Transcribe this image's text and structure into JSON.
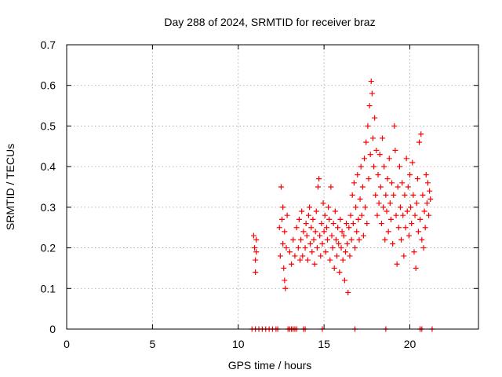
{
  "chart_data": {
    "type": "scatter",
    "title": "Day 288 of 2024, SRMTID for receiver braz",
    "xlabel": "GPS time / hours",
    "ylabel": "SRMTID / TECUs",
    "xlim": [
      0,
      24
    ],
    "ylim": [
      0,
      0.7
    ],
    "xticks": [
      0,
      5,
      10,
      15,
      20
    ],
    "yticks": [
      0,
      0.1,
      0.2,
      0.3,
      0.4,
      0.5,
      0.6,
      0.7
    ],
    "xtick_labels": [
      "0",
      "5",
      "10",
      "15",
      "20"
    ],
    "ytick_labels": [
      "0",
      "0.1",
      "0.2",
      "0.3",
      "0.4",
      "0.5",
      "0.6",
      "0.7"
    ],
    "grid": true,
    "marker": "+",
    "series": [
      {
        "name": "SRMTID",
        "color": "#ff0000",
        "x": [
          10.9,
          10.95,
          11.0,
          11.0,
          11.05,
          11.05,
          12.4,
          12.45,
          12.5,
          12.55,
          12.6,
          12.6,
          12.65,
          12.7,
          12.7,
          12.75,
          12.8,
          12.85,
          13.0,
          13.1,
          13.2,
          13.3,
          13.4,
          13.5,
          13.55,
          13.6,
          13.65,
          13.7,
          13.75,
          13.8,
          13.9,
          13.95,
          14.0,
          14.05,
          14.1,
          14.15,
          14.2,
          14.25,
          14.3,
          14.35,
          14.4,
          14.45,
          14.5,
          14.55,
          14.6,
          14.65,
          14.7,
          14.75,
          14.8,
          14.85,
          14.9,
          14.95,
          15.0,
          15.05,
          15.1,
          15.15,
          15.2,
          15.25,
          15.3,
          15.35,
          15.4,
          15.45,
          15.5,
          15.55,
          15.6,
          15.65,
          15.7,
          15.75,
          15.8,
          15.85,
          15.9,
          15.95,
          16.0,
          16.05,
          16.1,
          16.15,
          16.2,
          16.25,
          16.3,
          16.35,
          16.4,
          16.45,
          16.5,
          16.55,
          16.6,
          16.65,
          16.7,
          16.75,
          16.8,
          16.85,
          16.9,
          16.95,
          17.0,
          17.05,
          17.1,
          17.15,
          17.2,
          17.25,
          17.3,
          17.35,
          17.4,
          17.45,
          17.5,
          17.55,
          17.6,
          17.65,
          17.7,
          17.75,
          17.8,
          17.85,
          17.9,
          17.95,
          18.0,
          18.05,
          18.1,
          18.15,
          18.2,
          18.25,
          18.3,
          18.35,
          18.4,
          18.45,
          18.5,
          18.55,
          18.6,
          18.65,
          18.7,
          18.75,
          18.8,
          18.85,
          18.9,
          18.95,
          19.0,
          19.05,
          19.1,
          19.15,
          19.2,
          19.25,
          19.3,
          19.35,
          19.4,
          19.45,
          19.5,
          19.55,
          19.6,
          19.65,
          19.7,
          19.75,
          19.8,
          19.85,
          19.9,
          19.95,
          20.0,
          20.05,
          20.1,
          20.15,
          20.2,
          20.25,
          20.3,
          20.35,
          20.4,
          20.45,
          20.5,
          20.55,
          20.6,
          20.65,
          20.7,
          20.75,
          20.8,
          20.85,
          20.9,
          20.95,
          21.0,
          21.05,
          21.1,
          21.15,
          21.2,
          10.8,
          11.0,
          11.2,
          11.4,
          11.6,
          11.8,
          12.0,
          12.2,
          12.3,
          12.9,
          13.0,
          13.1,
          13.2,
          13.3,
          13.4,
          13.8,
          13.9,
          14.9,
          16.8,
          18.6,
          20.6,
          20.7,
          21.3
        ],
        "y": [
          0.23,
          0.2,
          0.17,
          0.14,
          0.19,
          0.22,
          0.25,
          0.18,
          0.35,
          0.27,
          0.21,
          0.3,
          0.15,
          0.12,
          0.24,
          0.1,
          0.2,
          0.28,
          0.19,
          0.16,
          0.22,
          0.18,
          0.25,
          0.2,
          0.27,
          0.17,
          0.22,
          0.29,
          0.18,
          0.24,
          0.2,
          0.26,
          0.23,
          0.17,
          0.28,
          0.3,
          0.21,
          0.25,
          0.19,
          0.27,
          0.22,
          0.16,
          0.24,
          0.29,
          0.2,
          0.35,
          0.37,
          0.23,
          0.18,
          0.26,
          0.21,
          0.31,
          0.24,
          0.28,
          0.19,
          0.25,
          0.22,
          0.3,
          0.27,
          0.17,
          0.35,
          0.23,
          0.2,
          0.26,
          0.15,
          0.29,
          0.22,
          0.18,
          0.25,
          0.21,
          0.14,
          0.27,
          0.2,
          0.24,
          0.17,
          0.23,
          0.12,
          0.19,
          0.26,
          0.21,
          0.09,
          0.25,
          0.18,
          0.28,
          0.22,
          0.33,
          0.26,
          0.36,
          0.2,
          0.3,
          0.24,
          0.38,
          0.27,
          0.22,
          0.32,
          0.4,
          0.28,
          0.35,
          0.23,
          0.42,
          0.3,
          0.46,
          0.26,
          0.5,
          0.37,
          0.55,
          0.43,
          0.61,
          0.58,
          0.47,
          0.4,
          0.52,
          0.33,
          0.44,
          0.28,
          0.38,
          0.31,
          0.43,
          0.35,
          0.26,
          0.47,
          0.3,
          0.4,
          0.22,
          0.33,
          0.29,
          0.37,
          0.24,
          0.42,
          0.31,
          0.27,
          0.36,
          0.21,
          0.33,
          0.5,
          0.44,
          0.28,
          0.16,
          0.35,
          0.25,
          0.4,
          0.3,
          0.22,
          0.36,
          0.28,
          0.18,
          0.33,
          0.25,
          0.42,
          0.29,
          0.35,
          0.23,
          0.38,
          0.3,
          0.26,
          0.41,
          0.33,
          0.19,
          0.28,
          0.15,
          0.31,
          0.37,
          0.24,
          0.46,
          0.27,
          0.48,
          0.22,
          0.33,
          0.2,
          0.29,
          0.25,
          0.38,
          0.31,
          0.36,
          0.28,
          0.34,
          0.32,
          0.0,
          0.0,
          0.0,
          0.0,
          0.0,
          0.0,
          0.0,
          0.0,
          0.0,
          0.0,
          0.0,
          0.0,
          0.0,
          0.0,
          0.0,
          0.0,
          0.0,
          0.0,
          0.0,
          0.0,
          0.0,
          0.0,
          0.0
        ]
      }
    ]
  }
}
